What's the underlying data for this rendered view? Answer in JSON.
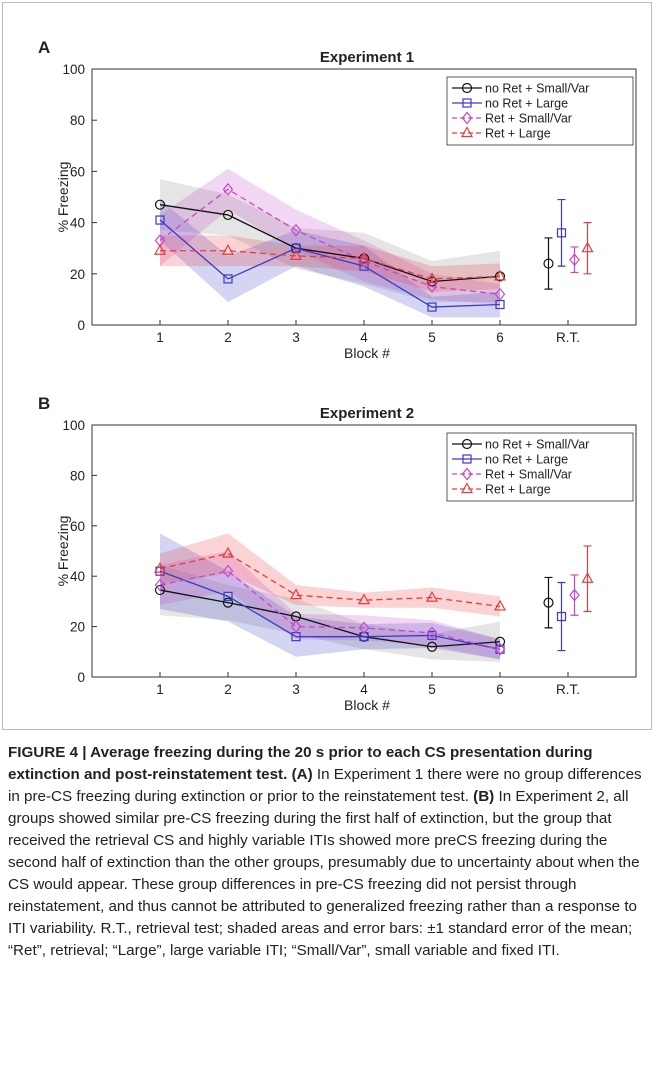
{
  "chart_data": [
    {
      "type": "line",
      "panel_label": "A",
      "title": "Experiment 1",
      "xlabel": "Block #",
      "ylabel": "% Freezing",
      "categories": [
        "1",
        "2",
        "3",
        "4",
        "5",
        "6",
        "R.T."
      ],
      "ylim": [
        0,
        100
      ],
      "yticks": [
        0,
        20,
        40,
        60,
        80,
        100
      ],
      "grid": false,
      "legend": "upper right",
      "series": [
        {
          "name": "no Ret + Small/Var",
          "color": "#111111",
          "marker": "o",
          "linestyle": "-",
          "values": [
            47,
            43,
            30,
            26,
            17,
            19,
            24
          ],
          "errors": [
            10,
            8,
            8,
            10,
            8,
            10,
            10
          ]
        },
        {
          "name": "no Ret + Large",
          "color": "#3a3ac8",
          "marker": "s",
          "linestyle": "-",
          "values": [
            41,
            18,
            30,
            23,
            7,
            8,
            36
          ],
          "errors": [
            8,
            9,
            7,
            8,
            4,
            5,
            13
          ]
        },
        {
          "name": "Ret + Small/Var",
          "color": "#c648c6",
          "marker": "d",
          "linestyle": "--",
          "values": [
            33,
            53,
            37,
            25,
            15,
            12,
            25.5
          ],
          "errors": [
            10,
            8,
            8,
            8,
            5,
            4,
            5
          ]
        },
        {
          "name": "Ret + Large",
          "color": "#e63c3c",
          "marker": "^",
          "linestyle": "--",
          "values": [
            29,
            29,
            27,
            26,
            18,
            19,
            30
          ],
          "errors": [
            6,
            6,
            4,
            5,
            5,
            5,
            10
          ]
        }
      ]
    },
    {
      "type": "line",
      "panel_label": "B",
      "title": "Experiment 2",
      "xlabel": "Block #",
      "ylabel": "% Freezing",
      "categories": [
        "1",
        "2",
        "3",
        "4",
        "5",
        "6",
        "R.T."
      ],
      "ylim": [
        0,
        100
      ],
      "yticks": [
        0,
        20,
        40,
        60,
        80,
        100
      ],
      "grid": false,
      "legend": "upper right",
      "series": [
        {
          "name": "no Ret + Small/Var",
          "color": "#111111",
          "marker": "o",
          "linestyle": "-",
          "values": [
            34.5,
            29.5,
            24,
            16,
            12,
            14,
            29.5
          ],
          "errors": [
            10,
            7,
            7,
            5,
            5,
            8,
            10
          ]
        },
        {
          "name": "no Ret + Large",
          "color": "#3a3ac8",
          "marker": "s",
          "linestyle": "-",
          "values": [
            42,
            32,
            16,
            16,
            16.5,
            11,
            24
          ],
          "errors": [
            15,
            10,
            8,
            5,
            5,
            4,
            13.5
          ]
        },
        {
          "name": "Ret + Small/Var",
          "color": "#c648c6",
          "marker": "d",
          "linestyle": "--",
          "values": [
            36.5,
            42,
            20,
            19.5,
            17.5,
            11,
            32.5
          ],
          "errors": [
            8,
            8,
            5,
            5,
            5,
            4,
            8
          ]
        },
        {
          "name": "Ret + Large",
          "color": "#e63c3c",
          "marker": "^",
          "linestyle": "--",
          "values": [
            43,
            49,
            32.5,
            30.5,
            31.5,
            28,
            39
          ],
          "errors": [
            6,
            8,
            4,
            3,
            4,
            4,
            13
          ]
        }
      ]
    }
  ],
  "caption": {
    "title": "FIGURE 4 | Average freezing during the 20 s prior to each CS presentation during extinction and post-reinstatement test.",
    "label_a": "(A)",
    "text_a": "In Experiment 1 there were no group differences in pre-CS freezing during extinction or prior to the reinstatement test.",
    "label_b": "(B)",
    "text_b": "In Experiment 2, all groups showed similar pre-CS freezing during the first half of extinction, but the group that received the retrieval CS and highly variable ITIs showed more preCS freezing during the second half of extinction than the other groups, presumably due to uncertainty about when the CS would appear. These group differences in pre-CS freezing did not persist through reinstatement, and thus cannot be attributed to generalized freezing rather than a response to ITI variability. R.T., retrieval test; shaded areas and error bars: ±1 standard error of the mean; “Ret”, retrieval; “Large”, large variable ITI; “Small/Var”, small variable and fixed ITI."
  }
}
